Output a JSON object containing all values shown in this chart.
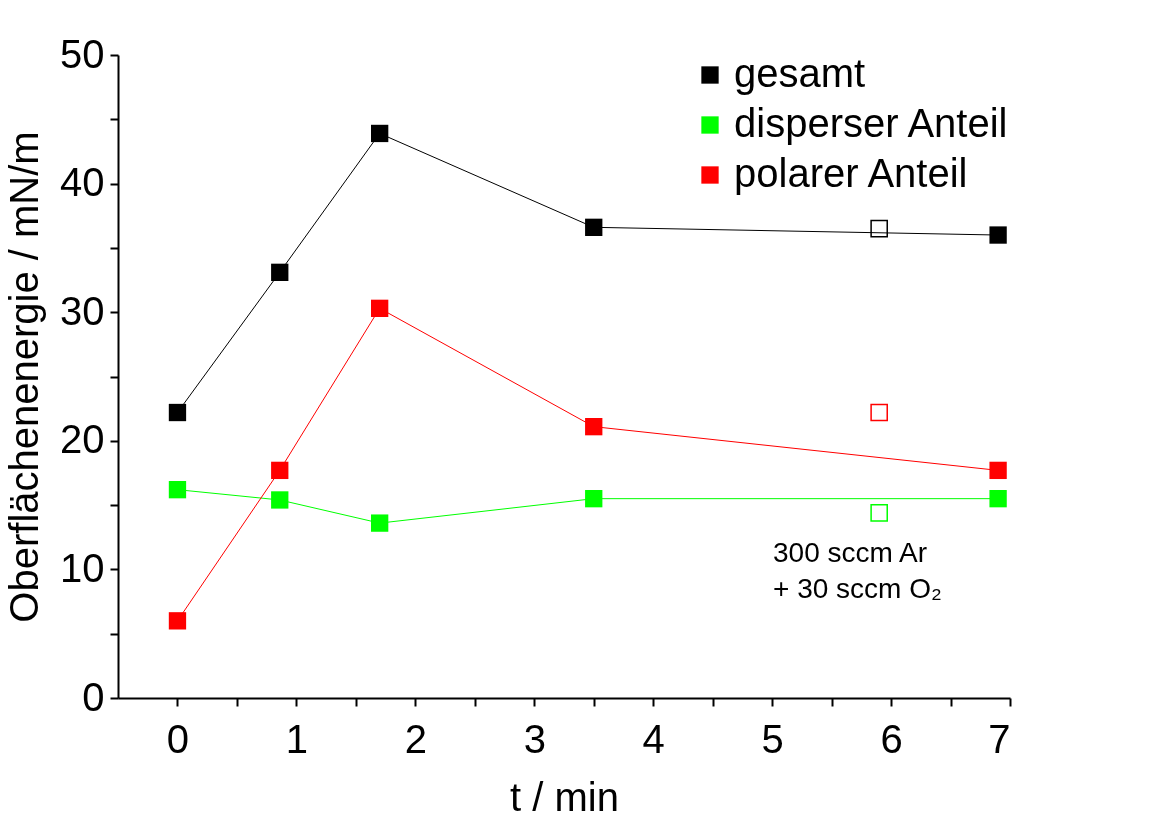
{
  "chart_data": {
    "type": "line",
    "xlabel": "t / min",
    "ylabel": "Oberflächenenergie  / mN/m",
    "xlim": [
      -0.5,
      7
    ],
    "ylim": [
      0,
      50
    ],
    "xticks": [
      0,
      {
        "value": 0.5,
        "label": null
      },
      1,
      {
        "value": 1.5,
        "label": null
      },
      2,
      {
        "value": 2.5,
        "label": null
      },
      3,
      {
        "value": 3.5,
        "label": null
      },
      4,
      {
        "value": 4.5,
        "label": null
      },
      5,
      {
        "value": 5.5,
        "label": null
      },
      6,
      {
        "value": 6.5,
        "label": null
      },
      7
    ],
    "yticks": [
      0,
      {
        "value": 5,
        "label": null
      },
      10,
      {
        "value": 15,
        "label": null
      },
      20,
      {
        "value": 25,
        "label": null
      },
      30,
      {
        "value": 35,
        "label": null
      },
      40,
      {
        "value": 45,
        "label": null
      },
      50
    ],
    "grid": false,
    "legend": "top right",
    "marker": "square",
    "line_style": "solid",
    "series": [
      {
        "name": "gesamt",
        "color": "#000000",
        "x": [
          0,
          0.86,
          1.7,
          3.5,
          6.9
        ],
        "values": [
          22.2,
          33.1,
          43.9,
          36.6,
          36.0
        ]
      },
      {
        "name": "disperser Anteil",
        "color": "#00ff00",
        "x": [
          0,
          0.86,
          1.7,
          3.5,
          6.9
        ],
        "values": [
          16.2,
          15.4,
          13.6,
          15.5,
          15.5
        ]
      },
      {
        "name": "polarer Anteil",
        "color": "#ff0000",
        "x": [
          0,
          0.86,
          1.7,
          3.5,
          6.9
        ],
        "values": [
          6.0,
          17.7,
          30.3,
          21.1,
          17.7
        ]
      },
      {
        "type": "scatter",
        "color": "#000000",
        "x": [
          5.9
        ],
        "values": [
          36.5
        ]
      },
      {
        "type": "scatter",
        "color": "#00ff00",
        "x": [
          5.9
        ],
        "values": [
          14.4
        ]
      },
      {
        "type": "scatter",
        "color": "#ff0000",
        "x": [
          5.9
        ],
        "values": [
          22.2
        ]
      }
    ],
    "annotations": [
      "300 sccm Ar\n+ 30 sccm O₂"
    ]
  }
}
